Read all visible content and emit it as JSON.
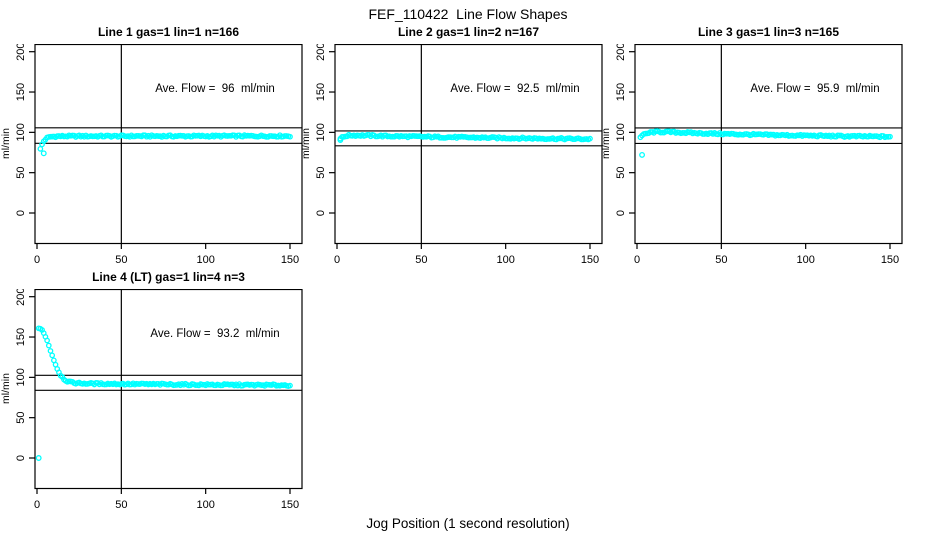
{
  "figure": {
    "title": "FEF_110422  Line Flow Shapes",
    "xlabel": "Jog Position (1 second resolution)",
    "ylabel": "ml/min",
    "point_color": "#00ffff",
    "axis_color": "#000000",
    "x_ticks": [
      0,
      50,
      100,
      150
    ],
    "y_ticks": [
      0,
      50,
      100,
      150,
      200
    ],
    "xlim": [
      -2,
      157
    ],
    "ylim": [
      -36,
      210
    ]
  },
  "chart_data": [
    {
      "type": "scatter",
      "title": "Line 1 gas=1 lin=1 n=166",
      "line": 1,
      "gas": 1,
      "lin": 1,
      "n": 166,
      "ave_flow": 96,
      "ave_flow_label": "Ave. Flow =  96  ml/min",
      "upper_limit": 105.6,
      "lower_limit": 86.4,
      "v_ref_line": 50,
      "outliers": [
        [
          4,
          74
        ]
      ],
      "profile": [
        [
          2,
          79
        ],
        [
          3,
          85
        ],
        [
          4,
          89
        ],
        [
          5,
          91.5
        ],
        [
          6,
          93
        ],
        [
          8,
          94.5
        ],
        [
          12,
          95.2
        ],
        [
          30,
          95.3
        ],
        [
          60,
          95.4
        ],
        [
          100,
          95.4
        ],
        [
          150,
          95.5
        ]
      ]
    },
    {
      "type": "scatter",
      "title": "Line 2 gas=1 lin=2 n=167",
      "line": 2,
      "gas": 1,
      "lin": 2,
      "n": 167,
      "ave_flow": 92.5,
      "ave_flow_label": "Ave. Flow =  92.5  ml/min",
      "upper_limit": 101.8,
      "lower_limit": 83.3,
      "v_ref_line": 50,
      "outliers": [
        [
          2,
          90.5
        ]
      ],
      "profile": [
        [
          2,
          92.5
        ],
        [
          3,
          93.5
        ],
        [
          5,
          95.5
        ],
        [
          8,
          96.3
        ],
        [
          15,
          96.2
        ],
        [
          30,
          95.3
        ],
        [
          60,
          94.2
        ],
        [
          100,
          93
        ],
        [
          130,
          92.2
        ],
        [
          150,
          91.7
        ]
      ]
    },
    {
      "type": "scatter",
      "title": "Line 3 gas=1 lin=3 n=165",
      "line": 3,
      "gas": 1,
      "lin": 3,
      "n": 165,
      "ave_flow": 95.9,
      "ave_flow_label": "Ave. Flow =  95.9  ml/min",
      "upper_limit": 105.5,
      "lower_limit": 86.3,
      "v_ref_line": 50,
      "outliers": [
        [
          3,
          72
        ]
      ],
      "profile": [
        [
          2,
          94.5
        ],
        [
          3,
          96
        ],
        [
          5,
          98
        ],
        [
          8,
          99.8
        ],
        [
          12,
          100.6
        ],
        [
          20,
          100.3
        ],
        [
          35,
          99
        ],
        [
          60,
          97.6
        ],
        [
          90,
          96.3
        ],
        [
          120,
          95.3
        ],
        [
          150,
          94.6
        ]
      ]
    },
    {
      "type": "scatter",
      "title": "Line 4 (LT) gas=1 lin=4 n=3",
      "line": 4,
      "gas": 1,
      "lin": 4,
      "n": 3,
      "ave_flow": 93.2,
      "ave_flow_label": "Ave. Flow =  93.2  ml/min",
      "upper_limit": 102.5,
      "lower_limit": 83.9,
      "v_ref_line": 50,
      "outliers": [
        [
          1,
          0
        ]
      ],
      "profile": [
        [
          1,
          160
        ],
        [
          2,
          160
        ],
        [
          3,
          158.5
        ],
        [
          4,
          155.5
        ],
        [
          5,
          151
        ],
        [
          6,
          145.5
        ],
        [
          7,
          139.5
        ],
        [
          8,
          133.5
        ],
        [
          9,
          127.5
        ],
        [
          10,
          121.5
        ],
        [
          11,
          116
        ],
        [
          12,
          111
        ],
        [
          13,
          106.5
        ],
        [
          14,
          103
        ],
        [
          15,
          100.2
        ],
        [
          16,
          98
        ],
        [
          17,
          96.5
        ],
        [
          18,
          95.3
        ],
        [
          20,
          93.8
        ],
        [
          24,
          92.8
        ],
        [
          30,
          92.3
        ],
        [
          50,
          91.8
        ],
        [
          80,
          91.2
        ],
        [
          110,
          90.7
        ],
        [
          150,
          90.2
        ]
      ]
    }
  ]
}
